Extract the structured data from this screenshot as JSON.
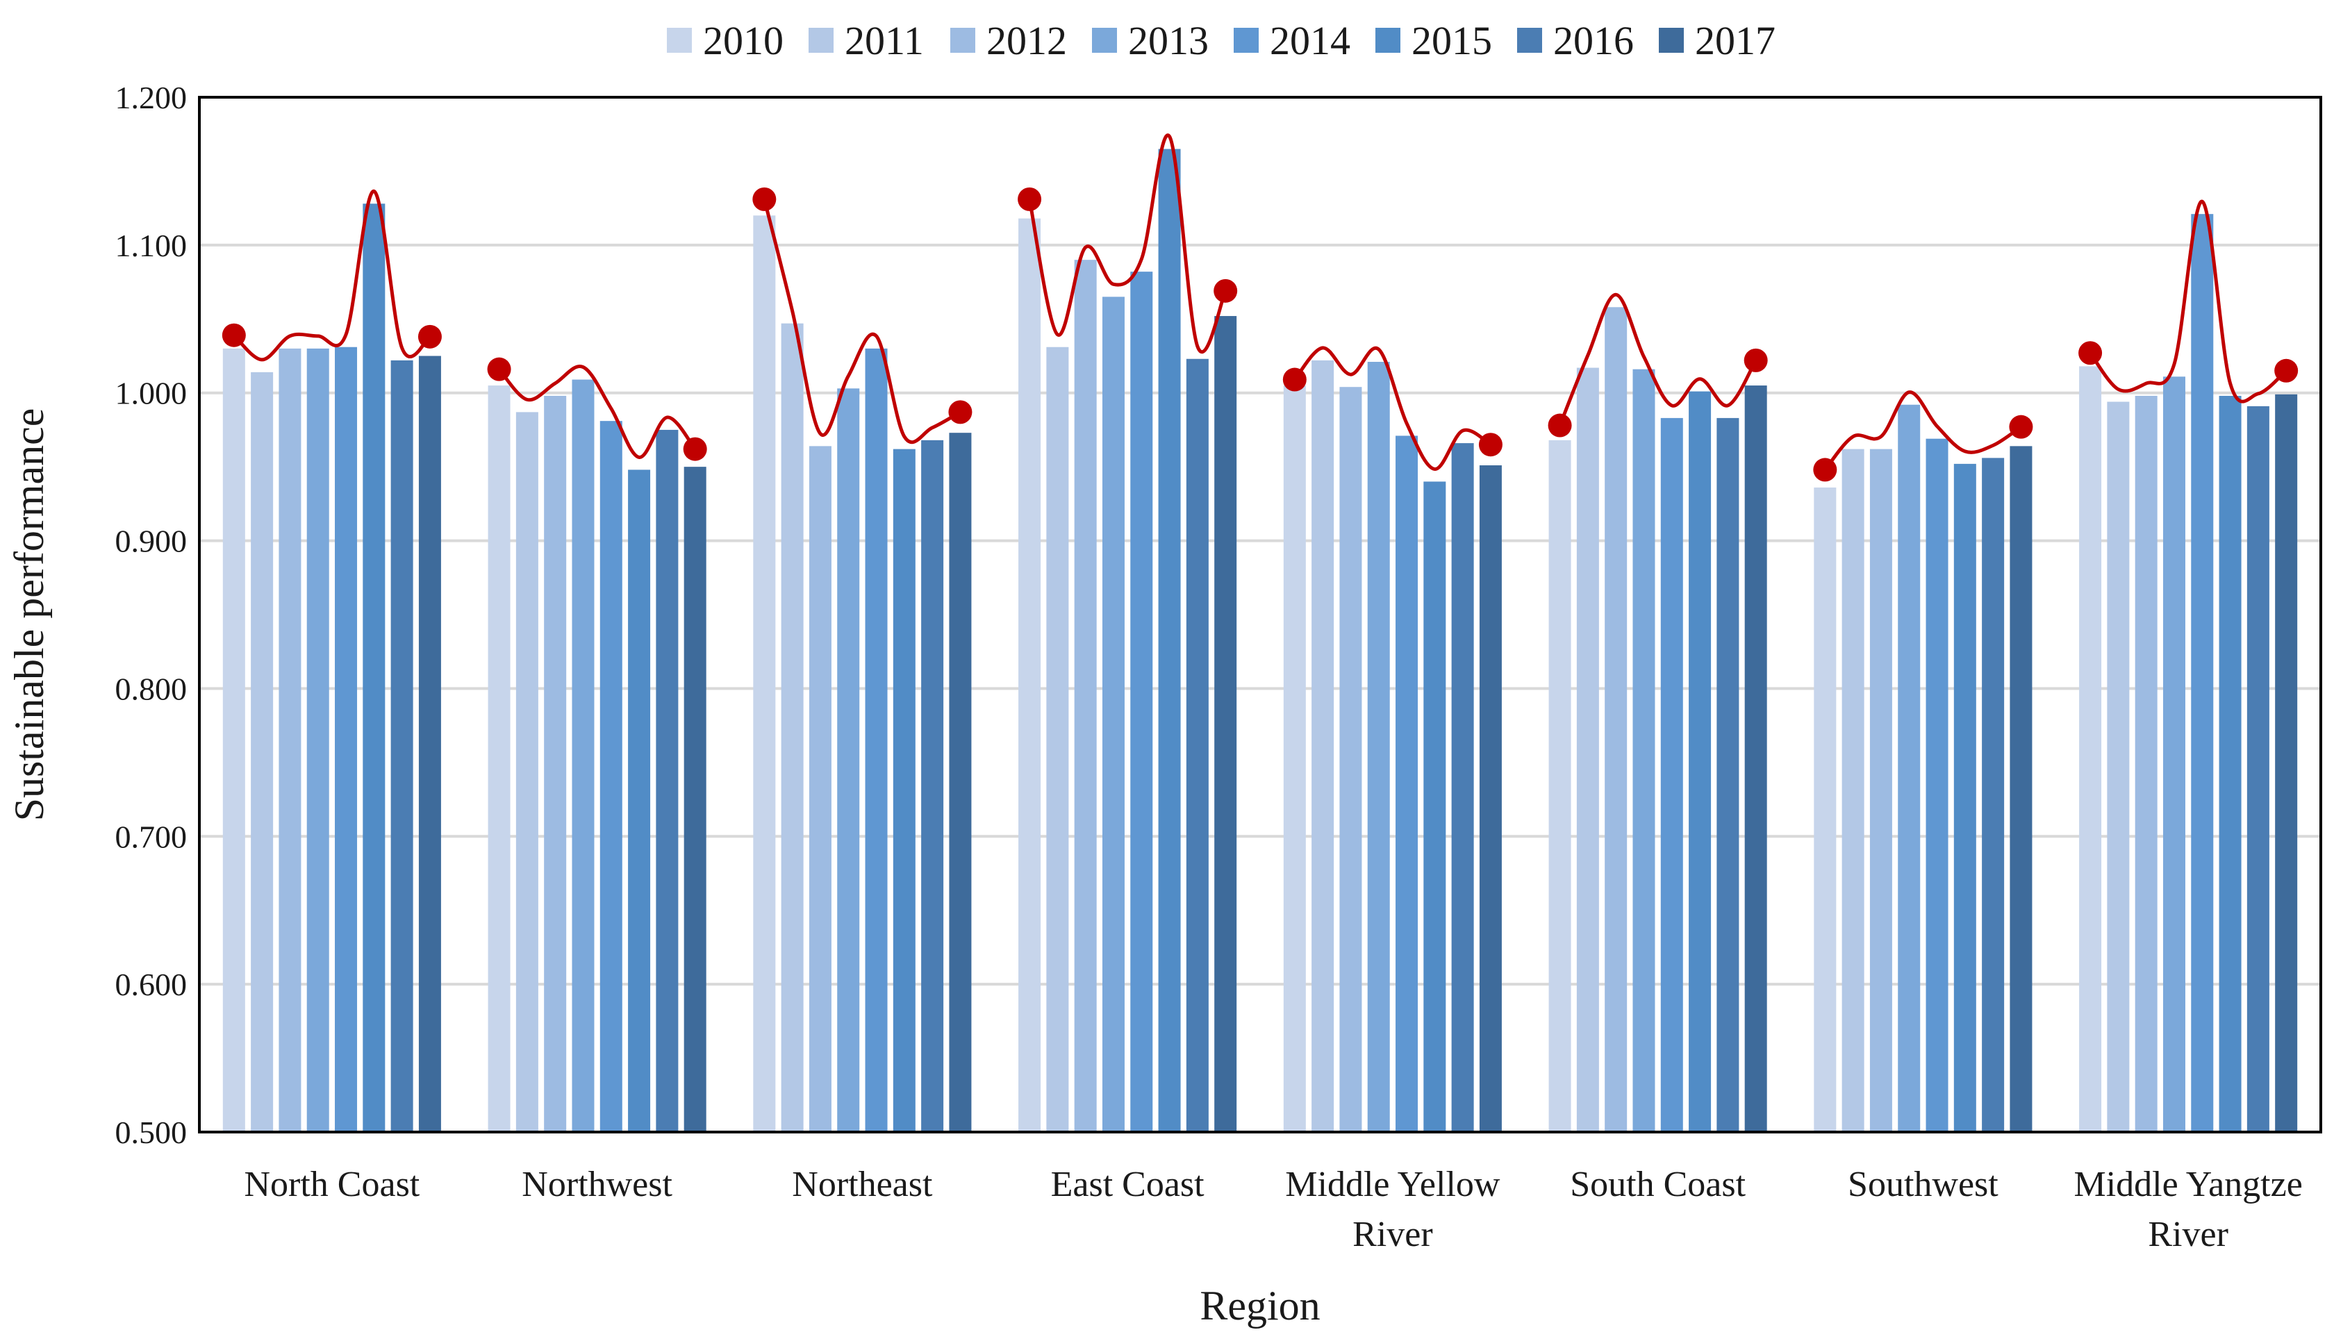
{
  "chart_data": {
    "type": "bar",
    "title": "",
    "xlabel": "Region",
    "ylabel": "Sustainable performance",
    "ylim": [
      0.5,
      1.2
    ],
    "yticks": [
      "0.500",
      "0.600",
      "0.700",
      "0.800",
      "0.900",
      "1.000",
      "1.100",
      "1.200"
    ],
    "grid": true,
    "legend_position": "top-center",
    "categories": [
      [
        "North Coast"
      ],
      [
        "Northwest"
      ],
      [
        "Northeast"
      ],
      [
        "East Coast"
      ],
      [
        "Middle Yellow",
        "River"
      ],
      [
        "South Coast"
      ],
      [
        "Southwest"
      ],
      [
        "Middle Yangtze",
        "River"
      ]
    ],
    "series": [
      {
        "name": "2010",
        "color": "#c7d5eb",
        "values": [
          1.03,
          1.005,
          1.12,
          1.118,
          1.005,
          0.968,
          0.936,
          1.018
        ]
      },
      {
        "name": "2011",
        "color": "#b3c8e6",
        "values": [
          1.014,
          0.987,
          1.047,
          1.031,
          1.022,
          1.017,
          0.962,
          0.994
        ]
      },
      {
        "name": "2012",
        "color": "#9dbbe2",
        "values": [
          1.03,
          0.998,
          0.964,
          1.09,
          1.004,
          1.058,
          0.962,
          0.998
        ]
      },
      {
        "name": "2013",
        "color": "#7ba8da",
        "values": [
          1.03,
          1.009,
          1.003,
          1.065,
          1.021,
          1.016,
          0.992,
          1.011
        ]
      },
      {
        "name": "2014",
        "color": "#5f97d2",
        "values": [
          1.031,
          0.981,
          1.03,
          1.082,
          0.971,
          0.983,
          0.969,
          1.121
        ]
      },
      {
        "name": "2015",
        "color": "#518cc6",
        "values": [
          1.128,
          0.948,
          0.962,
          1.165,
          0.94,
          1.001,
          0.952,
          0.998
        ]
      },
      {
        "name": "2016",
        "color": "#4b7db3",
        "values": [
          1.022,
          0.975,
          0.968,
          1.023,
          0.966,
          0.983,
          0.956,
          0.991
        ]
      },
      {
        "name": "2017",
        "color": "#3e6b9b",
        "values": [
          1.025,
          0.95,
          0.973,
          1.052,
          0.951,
          1.005,
          0.964,
          0.999
        ]
      }
    ],
    "trend_line": {
      "color": "#c00000",
      "start_markers": [
        1.039,
        1.016,
        1.131,
        1.131,
        1.009,
        0.978,
        0.948,
        1.027
      ],
      "end_markers": [
        1.038,
        0.962,
        0.987,
        1.069,
        0.965,
        1.022,
        0.977,
        1.015
      ]
    }
  }
}
